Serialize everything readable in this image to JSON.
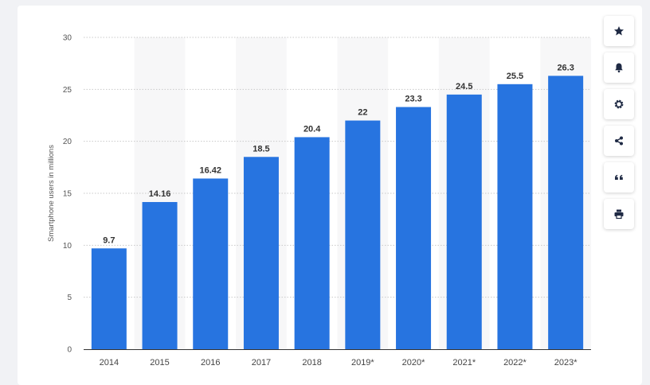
{
  "chart_data": {
    "type": "bar",
    "categories": [
      "2014",
      "2015",
      "2016",
      "2017",
      "2018",
      "2019*",
      "2020*",
      "2021*",
      "2022*",
      "2023*"
    ],
    "values": [
      9.7,
      14.16,
      16.42,
      18.5,
      20.4,
      22,
      23.3,
      24.5,
      25.5,
      26.3
    ],
    "value_labels": [
      "9.7",
      "14.16",
      "16.42",
      "18.5",
      "20.4",
      "22",
      "23.3",
      "24.5",
      "25.5",
      "26.3"
    ],
    "ylabel": "Smartphone users in millions",
    "xlabel": "",
    "ylim": [
      0,
      30
    ],
    "yticks": [
      "0",
      "5",
      "10",
      "15",
      "20",
      "25",
      "30"
    ],
    "bar_color": "#2774e0",
    "grid": "horizontal-dotted",
    "alternate_column_shading": true
  },
  "toolbar": {
    "buttons": [
      {
        "name": "star-icon"
      },
      {
        "name": "bell-icon"
      },
      {
        "name": "gear-icon"
      },
      {
        "name": "share-icon"
      },
      {
        "name": "quote-icon"
      },
      {
        "name": "print-icon"
      }
    ]
  }
}
